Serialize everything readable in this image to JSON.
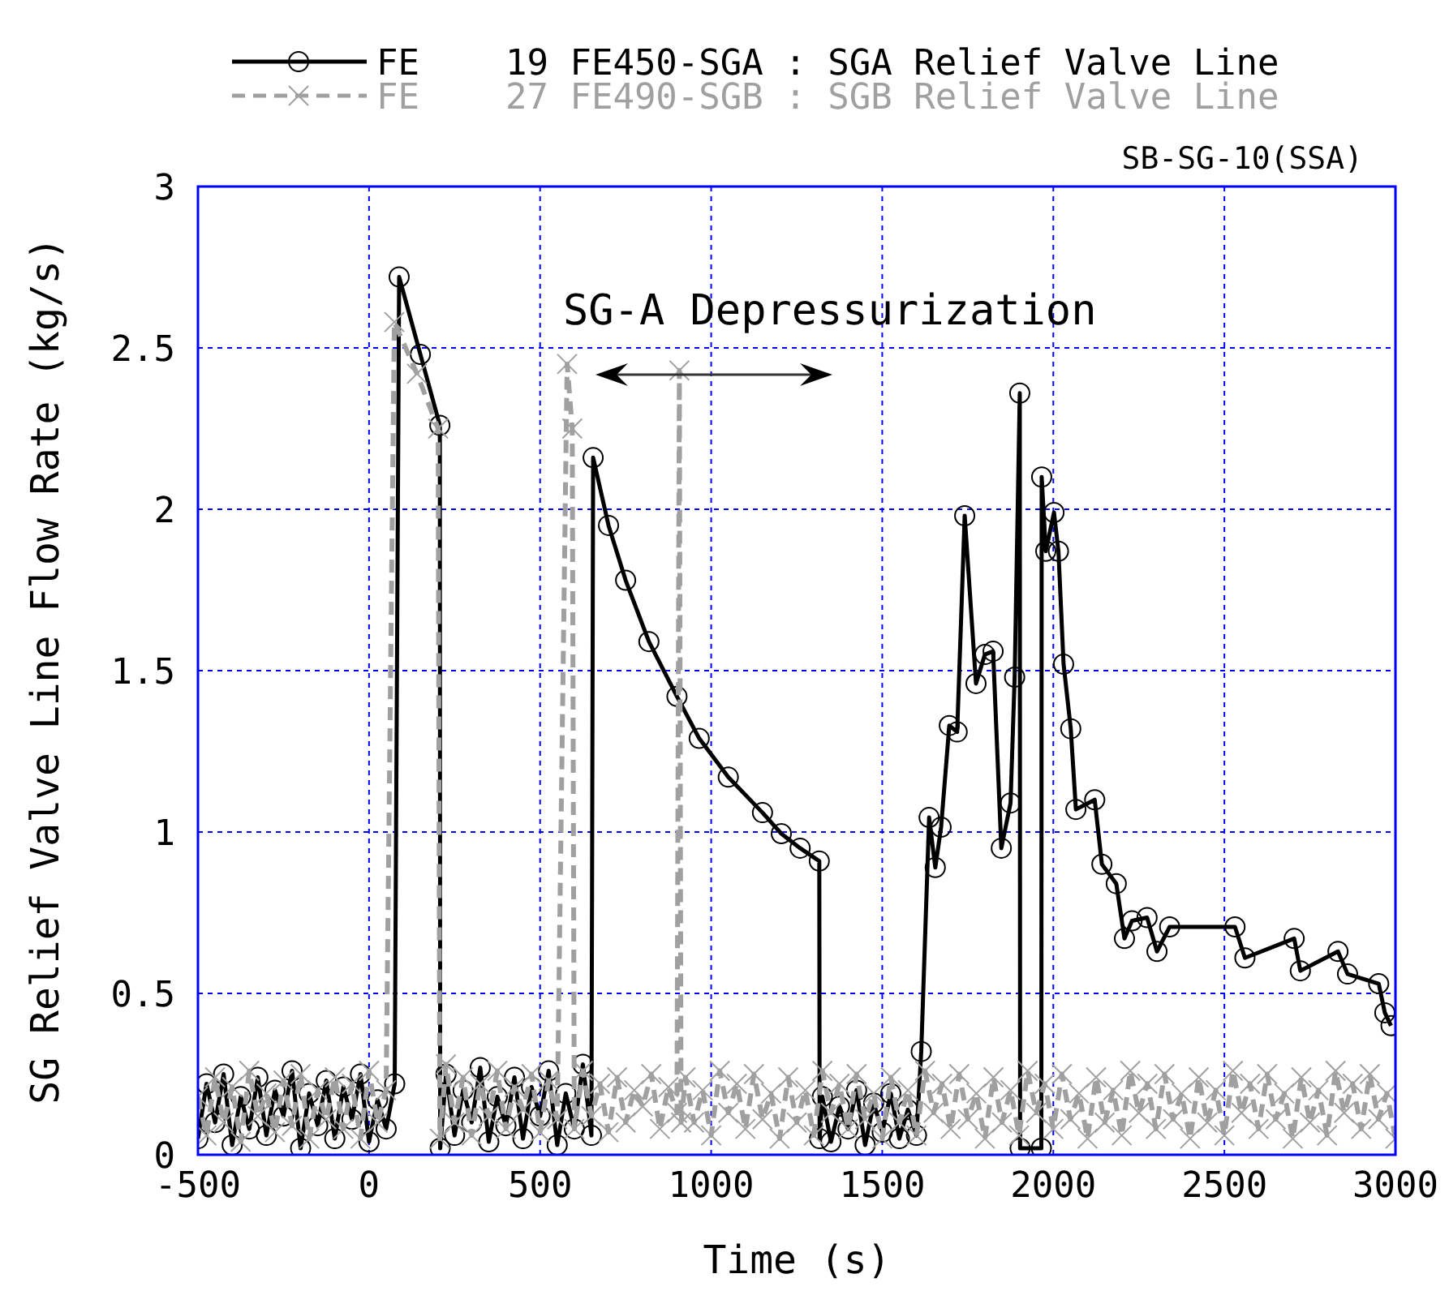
{
  "chart_data": {
    "type": "line",
    "subtitle": "SB-SG-10(SSA)",
    "xlabel": "Time (s)",
    "ylabel": "SG Relief Valve Line Flow Rate (kg/s)",
    "annotations": [
      "SG-A Depressurization"
    ],
    "xlim": [
      -500,
      3000
    ],
    "xticks": [
      -500,
      0,
      500,
      1000,
      1500,
      2000,
      2500,
      3000
    ],
    "ylim": [
      0,
      3
    ],
    "yticks": [
      0,
      0.5,
      1,
      1.5,
      2,
      2.5,
      3
    ],
    "grid": true,
    "legend": "top",
    "series": [
      {
        "name": "FE    19 FE450-SGA : SGA Relief Valve Line",
        "color": "#000000",
        "marker": "circle",
        "line_style": "solid",
        "x": [
          -500,
          -475,
          -450,
          -425,
          -400,
          -375,
          -350,
          -325,
          -300,
          -275,
          -250,
          -225,
          -200,
          -175,
          -150,
          -125,
          -100,
          -75,
          -50,
          -25,
          0,
          25,
          50,
          75,
          88,
          150,
          207,
          208,
          225,
          250,
          275,
          300,
          325,
          350,
          375,
          400,
          425,
          450,
          475,
          500,
          525,
          550,
          575,
          600,
          625,
          650,
          655,
          700,
          750,
          818,
          900,
          965,
          1050,
          1150,
          1205,
          1260,
          1316,
          1317,
          1325,
          1350,
          1375,
          1400,
          1425,
          1450,
          1475,
          1500,
          1525,
          1550,
          1575,
          1600,
          1614,
          1637,
          1655,
          1672,
          1696,
          1719,
          1741,
          1774,
          1800,
          1824,
          1848,
          1875,
          1887,
          1902,
          1903,
          1965,
          1966,
          1978,
          2002,
          2015,
          2030,
          2051,
          2066,
          2121,
          2142,
          2184,
          2208,
          2230,
          2274,
          2303,
          2340,
          2531,
          2560,
          2704,
          2722,
          2832,
          2860,
          2951,
          2969,
          2987
        ],
        "values": [
          0.05,
          0.22,
          0.1,
          0.25,
          0.03,
          0.18,
          0.08,
          0.24,
          0.06,
          0.2,
          0.12,
          0.26,
          0.02,
          0.19,
          0.09,
          0.23,
          0.05,
          0.21,
          0.11,
          0.25,
          0.04,
          0.17,
          0.08,
          0.22,
          2.72,
          2.48,
          2.26,
          0.02,
          0.25,
          0.06,
          0.2,
          0.1,
          0.27,
          0.04,
          0.18,
          0.09,
          0.24,
          0.05,
          0.21,
          0.12,
          0.26,
          0.03,
          0.19,
          0.08,
          0.28,
          0.06,
          2.16,
          1.95,
          1.78,
          1.59,
          1.42,
          1.29,
          1.17,
          1.06,
          0.995,
          0.95,
          0.91,
          0.05,
          0.18,
          0.04,
          0.15,
          0.08,
          0.2,
          0.03,
          0.16,
          0.07,
          0.19,
          0.05,
          0.14,
          0.06,
          0.32,
          1.045,
          0.89,
          1.015,
          1.33,
          1.31,
          1.98,
          1.46,
          1.55,
          1.56,
          0.95,
          1.09,
          1.48,
          2.36,
          0.02,
          0.02,
          2.1,
          1.87,
          1.99,
          1.87,
          1.52,
          1.32,
          1.07,
          1.1,
          0.9,
          0.84,
          0.67,
          0.725,
          0.735,
          0.63,
          0.706,
          0.706,
          0.61,
          0.67,
          0.57,
          0.63,
          0.56,
          0.53,
          0.44,
          0.4
        ]
      },
      {
        "name": "FE    27 FE490-SGB : SGB Relief Valve Line",
        "color": "#a0a0a0",
        "marker": "cross",
        "line_style": "dashed",
        "x": [
          -500,
          -475,
          -450,
          -425,
          -400,
          -375,
          -350,
          -325,
          -300,
          -275,
          -250,
          -225,
          -200,
          -175,
          -150,
          -125,
          -100,
          -75,
          -50,
          -25,
          0,
          25,
          50,
          74,
          140,
          202,
          207,
          225,
          250,
          275,
          300,
          325,
          350,
          375,
          400,
          425,
          450,
          475,
          500,
          525,
          550,
          579,
          594,
          600,
          625,
          650,
          675,
          700,
          725,
          750,
          775,
          800,
          825,
          850,
          875,
          900,
          907,
          912,
          925,
          950,
          975,
          1000,
          1025,
          1050,
          1075,
          1100,
          1125,
          1150,
          1175,
          1200,
          1225,
          1250,
          1275,
          1300,
          1325,
          1350,
          1375,
          1400,
          1425,
          1450,
          1475,
          1500,
          1525,
          1550,
          1575,
          1600,
          1625,
          1650,
          1675,
          1700,
          1725,
          1750,
          1775,
          1800,
          1825,
          1850,
          1875,
          1900,
          1925,
          1950,
          1975,
          2000,
          2025,
          2050,
          2075,
          2100,
          2125,
          2150,
          2175,
          2200,
          2225,
          2250,
          2275,
          2300,
          2325,
          2350,
          2375,
          2400,
          2425,
          2450,
          2475,
          2500,
          2525,
          2550,
          2575,
          2600,
          2625,
          2650,
          2675,
          2700,
          2725,
          2750,
          2775,
          2800,
          2825,
          2850,
          2875,
          2900,
          2925,
          2950,
          2975,
          3000
        ],
        "values": [
          0.18,
          0.06,
          0.24,
          0.1,
          0.21,
          0.04,
          0.26,
          0.12,
          0.19,
          0.07,
          0.23,
          0.09,
          0.25,
          0.05,
          0.2,
          0.11,
          0.24,
          0.08,
          0.22,
          0.05,
          0.26,
          0.1,
          0.2,
          2.58,
          2.42,
          2.25,
          0.05,
          0.28,
          0.1,
          0.24,
          0.06,
          0.22,
          0.12,
          0.26,
          0.08,
          0.21,
          0.14,
          0.25,
          0.07,
          0.23,
          0.11,
          2.45,
          2.25,
          0.08,
          0.26,
          0.12,
          0.22,
          0.07,
          0.24,
          0.1,
          0.2,
          0.15,
          0.25,
          0.08,
          0.21,
          0.13,
          2.43,
          0.1,
          0.24,
          0.1,
          0.2,
          0.06,
          0.26,
          0.13,
          0.22,
          0.08,
          0.25,
          0.11,
          0.19,
          0.05,
          0.24,
          0.1,
          0.2,
          0.06,
          0.26,
          0.13,
          0.22,
          0.08,
          0.25,
          0.11,
          0.19,
          0.05,
          0.24,
          0.1,
          0.2,
          0.06,
          0.26,
          0.13,
          0.22,
          0.08,
          0.25,
          0.11,
          0.19,
          0.05,
          0.24,
          0.1,
          0.2,
          0.06,
          0.26,
          0.13,
          0.22,
          0.08,
          0.25,
          0.11,
          0.19,
          0.05,
          0.24,
          0.1,
          0.2,
          0.06,
          0.26,
          0.13,
          0.22,
          0.08,
          0.25,
          0.11,
          0.19,
          0.05,
          0.24,
          0.1,
          0.2,
          0.06,
          0.26,
          0.13,
          0.22,
          0.08,
          0.25,
          0.11,
          0.19,
          0.05,
          0.24,
          0.1,
          0.2,
          0.06,
          0.26,
          0.13,
          0.22,
          0.08,
          0.25,
          0.11,
          0.19,
          0.05
        ]
      }
    ]
  }
}
